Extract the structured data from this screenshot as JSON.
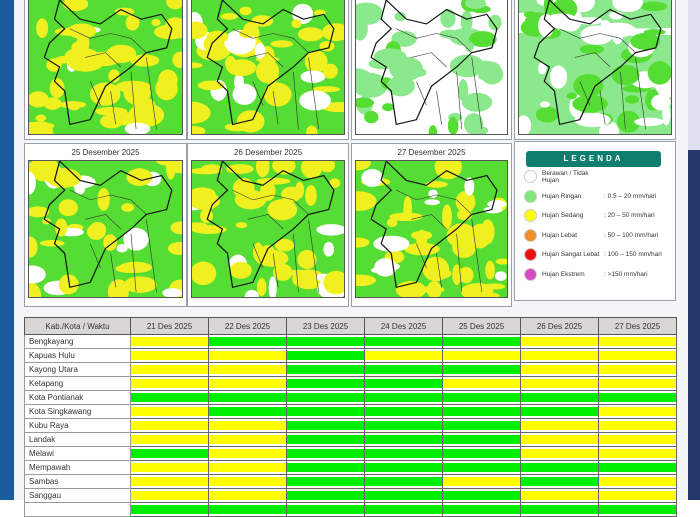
{
  "maps": [
    {
      "title": ""
    },
    {
      "title": ""
    },
    {
      "title": ""
    },
    {
      "title": ""
    },
    {
      "title": "25 Desember 2025"
    },
    {
      "title": "26 Desember 2025"
    },
    {
      "title": "27 Desember 2025"
    }
  ],
  "legend": {
    "title": "LEGENDA",
    "items": [
      {
        "label": "Berawan / Tidak Hujan",
        "range": "",
        "color": "#ffffff"
      },
      {
        "label": "Hujan Ringan",
        "range": ": 0.5 – 20 mm/hari",
        "color": "#7ee87e"
      },
      {
        "label": "Hujan Sedang",
        "range": ": 20 – 50 mm/hari",
        "color": "#ffff00"
      },
      {
        "label": "Hujan Lebat",
        "range": ": 50 – 100 mm/hari",
        "color": "#f0902a"
      },
      {
        "label": "Hujan Sangat Lebat",
        "range": ": 100 – 150 mm/hari",
        "color": "#ee1111"
      },
      {
        "label": "Hujan Ekstrem",
        "range": ": >150 mm/hari",
        "color": "#d24cc0"
      }
    ]
  },
  "colors": {
    "G": "#00ee00",
    "Y": "#ffff00"
  },
  "table": {
    "header": "Kab./Kota / Waktu",
    "dates": [
      "21 Des 2025",
      "22 Des 2025",
      "23 Des 2025",
      "24 Des 2025",
      "25 Des 2025",
      "26 Des 2025",
      "27 Des 2025"
    ],
    "rows": [
      {
        "name": "Bengkayang",
        "vals": [
          "Y",
          "G",
          "G",
          "G",
          "G",
          "Y",
          "Y"
        ]
      },
      {
        "name": "Kapuas Hulu",
        "vals": [
          "Y",
          "Y",
          "G",
          "Y",
          "Y",
          "Y",
          "Y"
        ]
      },
      {
        "name": "Kayong Utara",
        "vals": [
          "Y",
          "Y",
          "G",
          "G",
          "G",
          "Y",
          "Y"
        ]
      },
      {
        "name": "Ketapang",
        "vals": [
          "Y",
          "Y",
          "G",
          "G",
          "Y",
          "Y",
          "Y"
        ]
      },
      {
        "name": "Kota Pontianak",
        "vals": [
          "G",
          "G",
          "G",
          "G",
          "G",
          "G",
          "G"
        ]
      },
      {
        "name": "Kota Singkawang",
        "vals": [
          "Y",
          "G",
          "G",
          "G",
          "G",
          "G",
          "Y"
        ]
      },
      {
        "name": "Kubu Raya",
        "vals": [
          "Y",
          "Y",
          "G",
          "G",
          "G",
          "Y",
          "Y"
        ]
      },
      {
        "name": "Landak",
        "vals": [
          "Y",
          "Y",
          "G",
          "G",
          "G",
          "Y",
          "Y"
        ]
      },
      {
        "name": "Melawi",
        "vals": [
          "G",
          "Y",
          "G",
          "G",
          "G",
          "Y",
          "Y"
        ]
      },
      {
        "name": "Mempawah",
        "vals": [
          "Y",
          "Y",
          "G",
          "G",
          "G",
          "G",
          "G"
        ]
      },
      {
        "name": "Sambas",
        "vals": [
          "Y",
          "Y",
          "G",
          "G",
          "Y",
          "G",
          "Y"
        ]
      },
      {
        "name": "Sanggau",
        "vals": [
          "Y",
          "Y",
          "G",
          "G",
          "G",
          "Y",
          "Y"
        ]
      },
      {
        "name": "",
        "vals": [
          "G",
          "G",
          "G",
          "G",
          "G",
          "G",
          "G"
        ]
      }
    ]
  }
}
